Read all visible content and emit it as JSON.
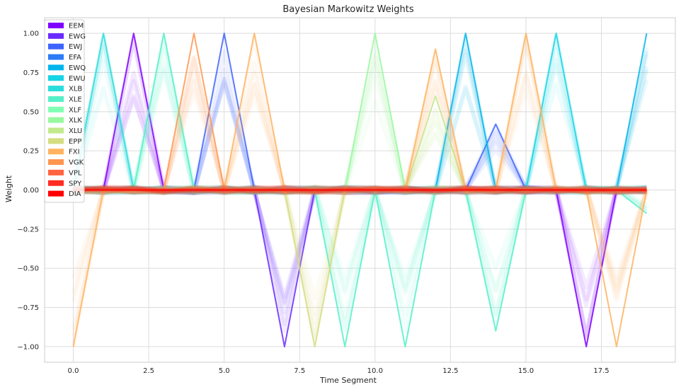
{
  "chart_data": {
    "type": "line",
    "title": "Bayesian Markowitz Weights",
    "xlabel": "Time Segment",
    "ylabel": "Weight",
    "xlim": [
      -0.95,
      19.95
    ],
    "ylim": [
      -1.1,
      1.1
    ],
    "xticks": [
      0.0,
      2.5,
      5.0,
      7.5,
      10.0,
      12.5,
      15.0,
      17.5
    ],
    "xtick_labels": [
      "0.0",
      "2.5",
      "5.0",
      "7.5",
      "10.0",
      "12.5",
      "15.0",
      "17.5"
    ],
    "yticks": [
      1.0,
      0.75,
      0.5,
      0.25,
      0.0,
      -0.25,
      -0.5,
      -0.75,
      -1.0
    ],
    "ytick_labels": [
      "1.00",
      "0.75",
      "0.50",
      "0.25",
      "0.00",
      "−0.25",
      "−0.50",
      "−0.75",
      "−1.00"
    ],
    "grid": true,
    "legend_position": "top-left",
    "x": [
      0,
      1,
      2,
      3,
      4,
      5,
      6,
      7,
      8,
      9,
      10,
      11,
      12,
      13,
      14,
      15,
      16,
      17,
      18,
      19
    ],
    "series": [
      {
        "name": "EEM",
        "color": "#8000ff",
        "values": [
          0,
          0,
          1,
          0,
          0,
          0,
          0,
          0,
          0,
          0,
          0,
          0,
          0,
          0,
          0,
          0,
          0,
          -1,
          0,
          0
        ]
      },
      {
        "name": "EWG",
        "color": "#6a2afe",
        "values": [
          0,
          0,
          0,
          0,
          0,
          0,
          0,
          -1,
          0,
          0,
          0,
          0,
          0,
          0,
          0,
          0,
          0,
          0,
          0,
          0
        ]
      },
      {
        "name": "EWJ",
        "color": "#3e63fd",
        "values": [
          0,
          0,
          0,
          0,
          0,
          1,
          0,
          0,
          0,
          0,
          0,
          0,
          0,
          0,
          0.42,
          0,
          0,
          0,
          0,
          0
        ]
      },
      {
        "name": "EFA",
        "color": "#2b7bf6",
        "values": [
          0,
          0,
          0,
          0,
          0,
          0,
          0,
          0,
          0,
          0,
          0,
          0,
          0,
          0,
          0,
          0,
          0,
          0,
          0,
          0
        ]
      },
      {
        "name": "EWQ",
        "color": "#00b5eb",
        "values": [
          0,
          0,
          0,
          0,
          0,
          0,
          0,
          0,
          0,
          0,
          0,
          0,
          0,
          1,
          0,
          0,
          0,
          0,
          0,
          1
        ]
      },
      {
        "name": "EWU",
        "color": "#16d4e6",
        "values": [
          0,
          0,
          0,
          0,
          0,
          0,
          0,
          0,
          0,
          0,
          0,
          0,
          0,
          0,
          0,
          0,
          1,
          0,
          0,
          0
        ]
      },
      {
        "name": "XLB",
        "color": "#2adddd",
        "values": [
          0,
          1,
          0,
          0,
          0,
          0,
          0,
          0,
          0,
          0,
          0,
          0,
          0,
          0,
          0,
          0,
          0,
          0,
          0,
          0
        ]
      },
      {
        "name": "XLE",
        "color": "#54f0c8",
        "values": [
          0,
          0,
          0,
          1,
          0,
          0,
          0,
          0,
          0,
          -1,
          0,
          -1,
          0,
          0,
          -0.9,
          0,
          0,
          0,
          0,
          -0.15
        ]
      },
      {
        "name": "XLF",
        "color": "#80ffb4",
        "values": [
          0,
          0,
          0,
          0,
          0,
          0,
          0,
          0,
          0,
          0,
          0,
          0,
          0,
          0,
          0,
          0,
          0,
          0,
          0,
          0
        ]
      },
      {
        "name": "XLK",
        "color": "#98f89f",
        "values": [
          0,
          0,
          0,
          0,
          0,
          0,
          0,
          0,
          0,
          0,
          1,
          0,
          0,
          0,
          0,
          0,
          0,
          0,
          0,
          0
        ]
      },
      {
        "name": "XLU",
        "color": "#c0ea8c",
        "values": [
          0,
          0,
          0,
          0,
          0,
          0,
          0,
          0,
          0,
          0,
          0,
          0,
          0.6,
          0,
          0,
          0,
          0,
          0,
          0,
          0
        ]
      },
      {
        "name": "EPP",
        "color": "#d4dd80",
        "values": [
          0,
          0,
          0,
          0,
          0,
          0,
          0,
          0,
          -1,
          0,
          0,
          0,
          0,
          0,
          0,
          0,
          0,
          0,
          0,
          0
        ]
      },
      {
        "name": "FXI",
        "color": "#ffb360",
        "values": [
          -1,
          0,
          0,
          0,
          0,
          0,
          1,
          0,
          0,
          0,
          0,
          0,
          0.9,
          0,
          0,
          1,
          0,
          0,
          -1,
          0
        ]
      },
      {
        "name": "VGK",
        "color": "#ff9650",
        "values": [
          0,
          0,
          0,
          0,
          1,
          0,
          0,
          0,
          0,
          0,
          0,
          0,
          0,
          0,
          0,
          0,
          0,
          0,
          0,
          0
        ]
      },
      {
        "name": "VPL",
        "color": "#ff6340",
        "values": [
          0,
          0,
          0,
          0,
          0,
          0,
          0,
          0,
          0,
          0,
          0,
          0,
          0,
          0,
          0,
          0,
          0,
          0,
          0,
          0
        ]
      },
      {
        "name": "SPY",
        "color": "#ff2c20",
        "values": [
          0,
          0,
          0,
          0,
          0,
          0,
          0,
          0,
          0,
          0,
          0,
          0,
          0,
          0,
          0,
          0,
          0,
          0,
          0,
          0
        ]
      },
      {
        "name": "DIA",
        "color": "#ff0000",
        "values": [
          0,
          0,
          0,
          0,
          0,
          0,
          0,
          0,
          0,
          0,
          0,
          0,
          0,
          0,
          0,
          0,
          0,
          0,
          0,
          0
        ]
      }
    ]
  }
}
